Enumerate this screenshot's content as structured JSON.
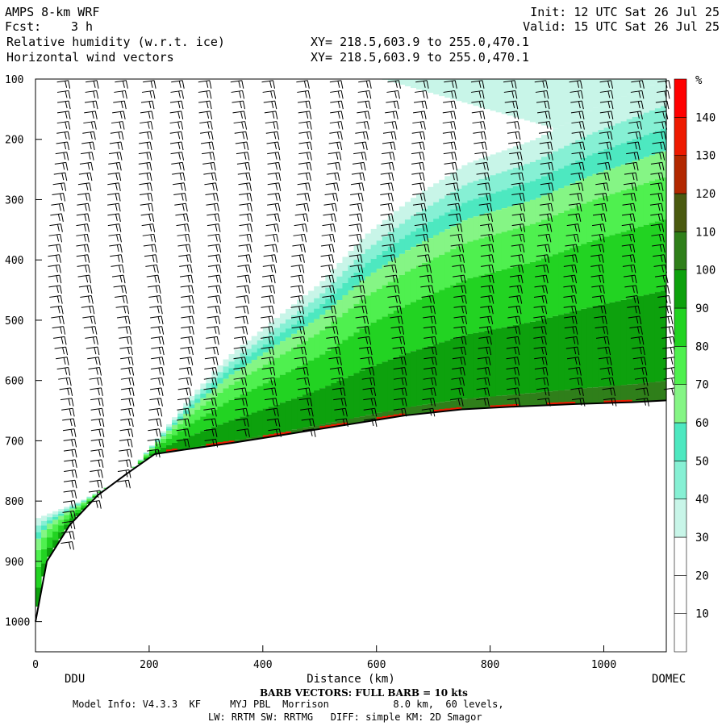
{
  "header": {
    "model": "AMPS 8-km WRF",
    "fcst_label": "Fcst:",
    "fcst_value": "3 h",
    "init": "Init: 12 UTC Sat 26 Jul 25",
    "valid": "Valid: 15 UTC Sat 26 Jul 25",
    "field1": "Relative humidity (w.r.t. ice)",
    "field2": "Horizontal wind vectors",
    "xy1": "XY= 218.5,603.9 to 255.0,470.1",
    "xy2": "XY= 218.5,603.9 to 255.0,470.1"
  },
  "footer": {
    "barb_note": "BARB VECTORS: FULL BARB = 10 kts",
    "model_info": "Model Info: V4.3.3  KF     MYJ PBL  Morrison           8.0 km,  60 levels,",
    "physics": "LW: RRTM SW: RRTMG   DIFF: simple KM: 2D Smagor",
    "left_station": "DDU",
    "right_station": "DOMEC"
  },
  "chart_data": {
    "type": "heatmap",
    "title": "Relative humidity (w.r.t. ice)",
    "xlabel": "Distance (km)",
    "ylabel": "",
    "xlim": [
      0,
      1110
    ],
    "ylim": [
      1050,
      100
    ],
    "x_ticks": [
      0,
      200,
      400,
      600,
      800,
      1000
    ],
    "y_ticks": [
      100,
      200,
      300,
      400,
      500,
      600,
      700,
      800,
      900,
      1000
    ],
    "colorbar": {
      "unit": "%",
      "levels": [
        10,
        20,
        30,
        40,
        50,
        60,
        70,
        80,
        90,
        100,
        110,
        120,
        130,
        140
      ],
      "colors": [
        "#ffffff",
        "#ffffff",
        "#ffffff",
        "#c8f5e8",
        "#86f0d4",
        "#4de8c0",
        "#85f585",
        "#4ff04f",
        "#22d322",
        "#0da10d",
        "#2f7f1a",
        "#4a5a10",
        "#b22800",
        "#ee1a00",
        "#ff0000"
      ]
    },
    "terrain_surface": [
      {
        "x": 0,
        "p": 1000
      },
      {
        "x": 20,
        "p": 900
      },
      {
        "x": 60,
        "p": 840
      },
      {
        "x": 110,
        "p": 790
      },
      {
        "x": 160,
        "p": 755
      },
      {
        "x": 210,
        "p": 722
      },
      {
        "x": 260,
        "p": 715
      },
      {
        "x": 350,
        "p": 703
      },
      {
        "x": 450,
        "p": 688
      },
      {
        "x": 550,
        "p": 673
      },
      {
        "x": 650,
        "p": 658
      },
      {
        "x": 750,
        "p": 648
      },
      {
        "x": 850,
        "p": 643
      },
      {
        "x": 950,
        "p": 639
      },
      {
        "x": 1050,
        "p": 636
      },
      {
        "x": 1110,
        "p": 633
      }
    ],
    "moist_top": [
      {
        "x": 0,
        "p": 830
      },
      {
        "x": 80,
        "p": 800
      },
      {
        "x": 160,
        "p": 760
      },
      {
        "x": 220,
        "p": 690
      },
      {
        "x": 280,
        "p": 620
      },
      {
        "x": 340,
        "p": 560
      },
      {
        "x": 420,
        "p": 500
      },
      {
        "x": 500,
        "p": 440
      },
      {
        "x": 580,
        "p": 360
      },
      {
        "x": 660,
        "p": 300
      },
      {
        "x": 760,
        "p": 240
      },
      {
        "x": 880,
        "p": 200
      },
      {
        "x": 980,
        "p": 150
      },
      {
        "x": 1110,
        "p": 100
      }
    ],
    "barb_columns_km": [
      30,
      80,
      135,
      190,
      245,
      295,
      350,
      400,
      455,
      510,
      560,
      615,
      670,
      725,
      775,
      830,
      880,
      935,
      985,
      1040,
      1090
    ]
  }
}
